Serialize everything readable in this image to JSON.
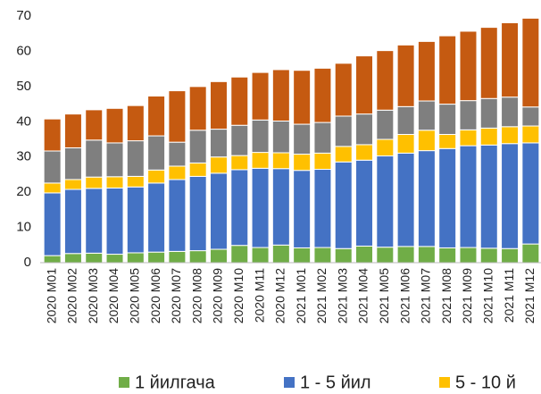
{
  "chart_data": {
    "type": "stacked_bar",
    "categories": [
      "2020 M01",
      "2020 M02",
      "2020 M03",
      "2020 M04",
      "2020 M05",
      "2020 M06",
      "2020 M07",
      "2020 M08",
      "2020 M09",
      "2020 M10",
      "2020 M11",
      "2020 M12",
      "2021 M01",
      "2021 M02",
      "2021 M03",
      "2021 M04",
      "2021 M05",
      "2021 M06",
      "2021 M07",
      "2021 M08",
      "2021 M09",
      "2021 M10",
      "2021 M11",
      "2021 M12"
    ],
    "series": [
      {
        "name": "1 йилгача",
        "color": "#70ad47",
        "values": [
          2.0,
          2.6,
          2.7,
          2.4,
          2.8,
          3.0,
          3.2,
          3.4,
          3.8,
          4.9,
          4.3,
          5.0,
          4.2,
          4.3,
          4.0,
          4.7,
          4.4,
          4.6,
          4.6,
          4.2,
          4.3,
          4.1,
          4.0,
          5.3
        ]
      },
      {
        "name": "1 - 5 йил",
        "color": "#4472c4",
        "values": [
          17.8,
          18.2,
          18.4,
          18.8,
          18.7,
          19.6,
          20.4,
          21.1,
          21.6,
          21.5,
          22.5,
          21.7,
          22.0,
          22.2,
          24.6,
          24.4,
          25.9,
          26.5,
          27.2,
          28.2,
          28.9,
          29.3,
          29.8,
          28.7
        ]
      },
      {
        "name": "5 - 10 й",
        "color": "#ffc000",
        "values": [
          2.8,
          2.8,
          3.2,
          3.2,
          3.0,
          3.7,
          3.8,
          3.8,
          4.6,
          4.0,
          4.5,
          4.5,
          4.6,
          4.6,
          4.4,
          4.4,
          4.7,
          5.3,
          5.8,
          4.0,
          4.5,
          4.8,
          4.8,
          4.8
        ]
      },
      {
        "color": "#7f7f7f",
        "values": [
          9.1,
          9.0,
          10.5,
          9.6,
          10.1,
          9.7,
          6.8,
          9.3,
          7.9,
          8.6,
          9.2,
          9.0,
          8.5,
          8.7,
          8.6,
          8.7,
          8.3,
          7.9,
          8.3,
          8.6,
          8.3,
          8.4,
          8.4,
          5.4
        ]
      },
      {
        "color": "#c55a11",
        "values": [
          9.1,
          9.6,
          8.6,
          9.8,
          10.0,
          11.3,
          14.6,
          12.4,
          13.5,
          13.7,
          13.5,
          14.6,
          15.3,
          15.4,
          15.0,
          16.5,
          16.9,
          17.5,
          16.9,
          19.4,
          19.7,
          20.2,
          21.1,
          25.2
        ]
      }
    ],
    "ylim": [
      0,
      70
    ],
    "yticks": [
      0,
      10,
      20,
      30,
      40,
      50,
      60,
      70
    ],
    "grid": false
  }
}
